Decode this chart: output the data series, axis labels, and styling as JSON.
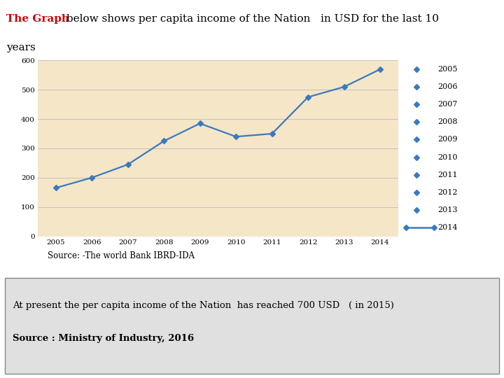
{
  "years": [
    2005,
    2006,
    2007,
    2008,
    2009,
    2010,
    2011,
    2012,
    2013,
    2014
  ],
  "values": [
    165,
    200,
    245,
    325,
    385,
    340,
    350,
    475,
    510,
    570
  ],
  "line_color": "#3a7abf",
  "marker": "D",
  "marker_size": 4,
  "ylim": [
    0,
    600
  ],
  "yticks": [
    0,
    100,
    200,
    300,
    400,
    500,
    600
  ],
  "plot_bg": "#f5e6c8",
  "outer_bg": "#ffffff",
  "title_text1": "The Graph",
  "title_text2": " below shows per capita income of the Nation   in USD for the last 10",
  "title_line2": "years",
  "title_bg": "#aee4ed",
  "source_text": "Source: -The world Bank IBRD-IDA",
  "source_border": "#4a9a6a",
  "source_bg": "#e8f5e8",
  "bottom_bg": "#d0d0d0",
  "bottom_text1": "At present the per capita income of the Nation  has reached 700 USD   ( in 2015)",
  "bottom_text2": "Source : Ministry of Industry, 2016",
  "legend_years": [
    "2005",
    "2006",
    "2007",
    "2008",
    "2009",
    "2010",
    "2011",
    "2012",
    "2013",
    "2014"
  ]
}
